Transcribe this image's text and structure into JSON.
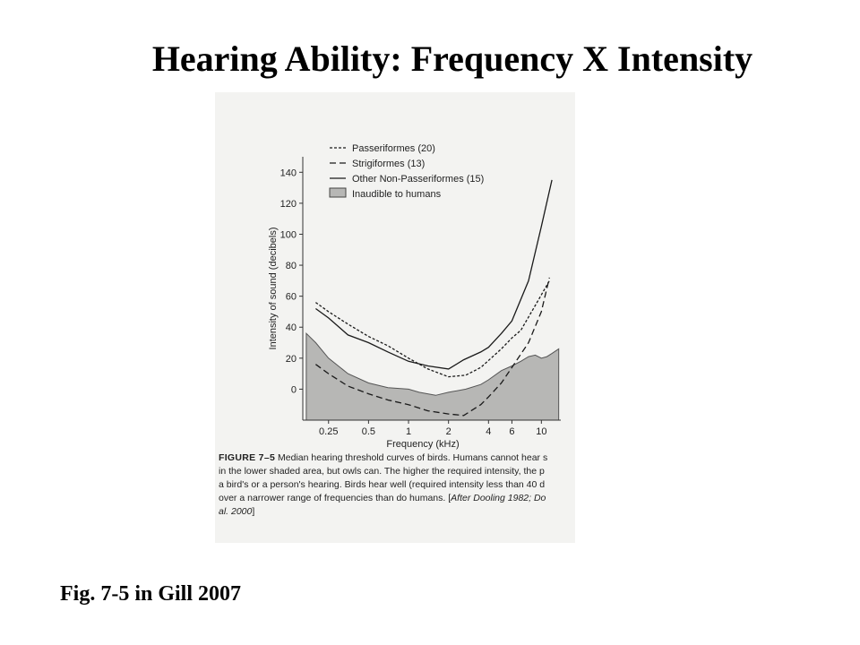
{
  "slide": {
    "title": "Hearing Ability: Frequency X Intensity",
    "citation": "Fig. 7-5 in Gill 2007"
  },
  "figure": {
    "caption_label": "FIGURE 7–5",
    "caption_line1": "Median hearing threshold curves of birds. Humans cannot hear s",
    "caption_line2": "in the lower shaded area, but owls can. The higher the required intensity, the p",
    "caption_line3": "a bird's or a person's hearing. Birds hear well (required intensity less than 40 d",
    "caption_line4_pre": "over a narrower range of frequencies than do humans. [",
    "caption_line4_it": "After Dooling 1982; Do",
    "caption_line5_it": "al. 2000",
    "caption_line5_post": "]"
  },
  "chart_data": {
    "type": "line",
    "xlabel": "Frequency (kHz)",
    "ylabel": "Intensity of sound (decibels)",
    "x_scale": "log",
    "xlim": [
      0.16,
      14
    ],
    "ylim": [
      -20,
      150
    ],
    "x_ticks": [
      {
        "value": 0.25,
        "label": "0.25"
      },
      {
        "value": 0.5,
        "label": "0.5"
      },
      {
        "value": 1,
        "label": "1"
      },
      {
        "value": 2,
        "label": "2"
      },
      {
        "value": 4,
        "label": "4"
      },
      {
        "value": 6,
        "label": "6"
      },
      {
        "value": 10,
        "label": "10"
      }
    ],
    "y_ticks": [
      0,
      20,
      40,
      60,
      80,
      100,
      120,
      140
    ],
    "legend_position": "top-left",
    "series": [
      {
        "name": "Passeriformes (20)",
        "style": "dotted",
        "points": [
          [
            0.2,
            56
          ],
          [
            0.25,
            50
          ],
          [
            0.35,
            42
          ],
          [
            0.5,
            34
          ],
          [
            0.7,
            28
          ],
          [
            1,
            20
          ],
          [
            1.4,
            13
          ],
          [
            2,
            8
          ],
          [
            2.7,
            9
          ],
          [
            3.5,
            14
          ],
          [
            5,
            26
          ],
          [
            6,
            33
          ],
          [
            7,
            38
          ],
          [
            9,
            54
          ],
          [
            11.5,
            70
          ]
        ]
      },
      {
        "name": "Strigiformes (13)",
        "style": "dashed",
        "points": [
          [
            0.2,
            16
          ],
          [
            0.25,
            10
          ],
          [
            0.35,
            2
          ],
          [
            0.5,
            -3
          ],
          [
            0.7,
            -7
          ],
          [
            1,
            -10
          ],
          [
            1.4,
            -14
          ],
          [
            2,
            -16
          ],
          [
            2.6,
            -17
          ],
          [
            3.5,
            -10
          ],
          [
            4,
            -5
          ],
          [
            5,
            4
          ],
          [
            6,
            14
          ],
          [
            8,
            30
          ],
          [
            10,
            50
          ],
          [
            11.5,
            72
          ]
        ]
      },
      {
        "name": "Other Non-Passeriformes (15)",
        "style": "solid",
        "points": [
          [
            0.2,
            52
          ],
          [
            0.25,
            46
          ],
          [
            0.35,
            35
          ],
          [
            0.5,
            30
          ],
          [
            0.7,
            24
          ],
          [
            1,
            18
          ],
          [
            1.4,
            15
          ],
          [
            2,
            13
          ],
          [
            2.6,
            19
          ],
          [
            3.5,
            24
          ],
          [
            4,
            27
          ],
          [
            5,
            36
          ],
          [
            6,
            44
          ],
          [
            8,
            70
          ],
          [
            10,
            105
          ],
          [
            12,
            135
          ]
        ]
      },
      {
        "name": "Inaudible to humans",
        "style": "filled-area",
        "points": [
          [
            0.17,
            36
          ],
          [
            0.2,
            30
          ],
          [
            0.25,
            20
          ],
          [
            0.35,
            10
          ],
          [
            0.5,
            4
          ],
          [
            0.7,
            1
          ],
          [
            1,
            0
          ],
          [
            1.2,
            -2
          ],
          [
            1.6,
            -4
          ],
          [
            2,
            -2
          ],
          [
            2.7,
            0
          ],
          [
            3.5,
            3
          ],
          [
            4,
            6
          ],
          [
            5,
            12
          ],
          [
            6,
            15
          ],
          [
            7,
            18
          ],
          [
            8,
            21
          ],
          [
            9,
            22
          ],
          [
            10,
            20
          ],
          [
            11,
            21
          ],
          [
            12,
            23
          ],
          [
            13.5,
            26
          ]
        ]
      }
    ]
  }
}
